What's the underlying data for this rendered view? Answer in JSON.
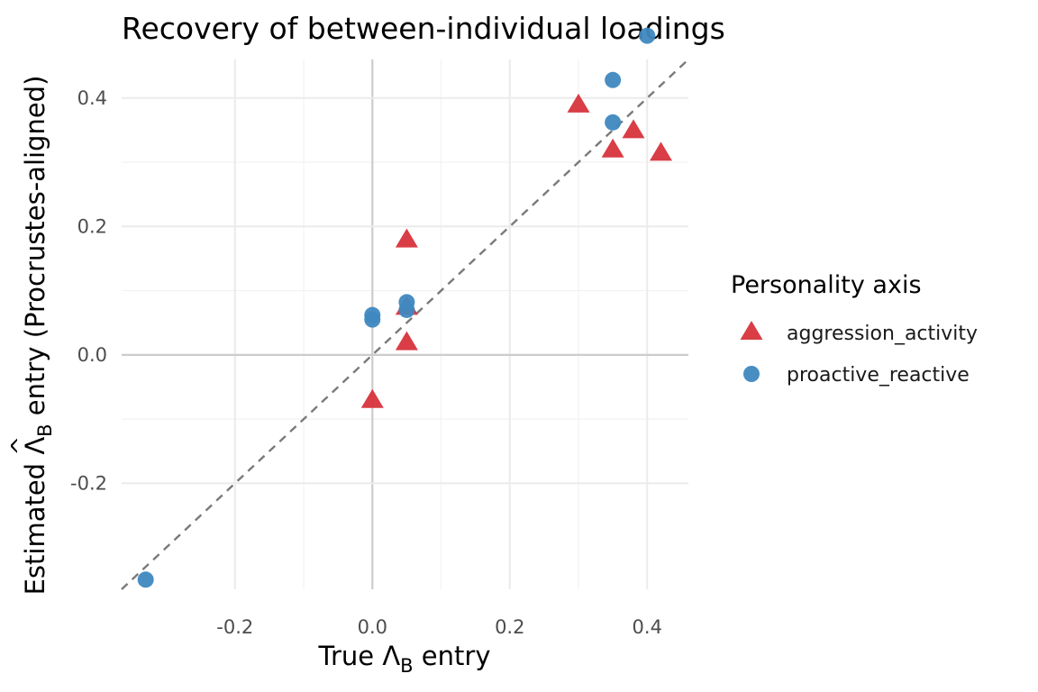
{
  "chart_data": {
    "type": "scatter",
    "title": "Recovery of between-individual loadings",
    "xlabel": {
      "pre": "True ",
      "symbol": "Λ",
      "sub": "B",
      "post": " entry"
    },
    "ylabel": {
      "pre": "Estimated ",
      "symbol": "Λ",
      "hat": "^",
      "sub": "B",
      "post": " entry (Procrustes-aligned)"
    },
    "xlim": [
      -0.365,
      0.46
    ],
    "ylim": [
      -0.365,
      0.46
    ],
    "x_ticks": [
      -0.2,
      0.0,
      0.2,
      0.4
    ],
    "x_tick_labels": [
      "-0.2",
      "0.0",
      "0.2",
      "0.4"
    ],
    "y_ticks": [
      -0.2,
      0.0,
      0.2,
      0.4
    ],
    "y_tick_labels": [
      "-0.2",
      "0.0",
      "0.2",
      "0.4"
    ],
    "grid": true,
    "reference_line": "identity (y = x), dashed",
    "legend": {
      "title": "Personality axis",
      "position": "right"
    },
    "series": [
      {
        "name": "aggression_activity",
        "shape": "triangle",
        "color": "#d7333b",
        "points": [
          {
            "x": 0.0,
            "y": -0.07
          },
          {
            "x": 0.05,
            "y": 0.02
          },
          {
            "x": 0.05,
            "y": 0.075
          },
          {
            "x": 0.05,
            "y": 0.18
          },
          {
            "x": 0.3,
            "y": 0.39
          },
          {
            "x": 0.35,
            "y": 0.32
          },
          {
            "x": 0.38,
            "y": 0.35
          },
          {
            "x": 0.42,
            "y": 0.315
          }
        ]
      },
      {
        "name": "proactive_reactive",
        "shape": "circle",
        "color": "#3f88c0",
        "points": [
          {
            "x": -0.33,
            "y": -0.35
          },
          {
            "x": 0.0,
            "y": 0.055
          },
          {
            "x": 0.0,
            "y": 0.062
          },
          {
            "x": 0.05,
            "y": 0.07
          },
          {
            "x": 0.05,
            "y": 0.082
          },
          {
            "x": 0.35,
            "y": 0.362
          },
          {
            "x": 0.35,
            "y": 0.428
          },
          {
            "x": 0.4,
            "y": 0.497
          }
        ]
      }
    ]
  }
}
